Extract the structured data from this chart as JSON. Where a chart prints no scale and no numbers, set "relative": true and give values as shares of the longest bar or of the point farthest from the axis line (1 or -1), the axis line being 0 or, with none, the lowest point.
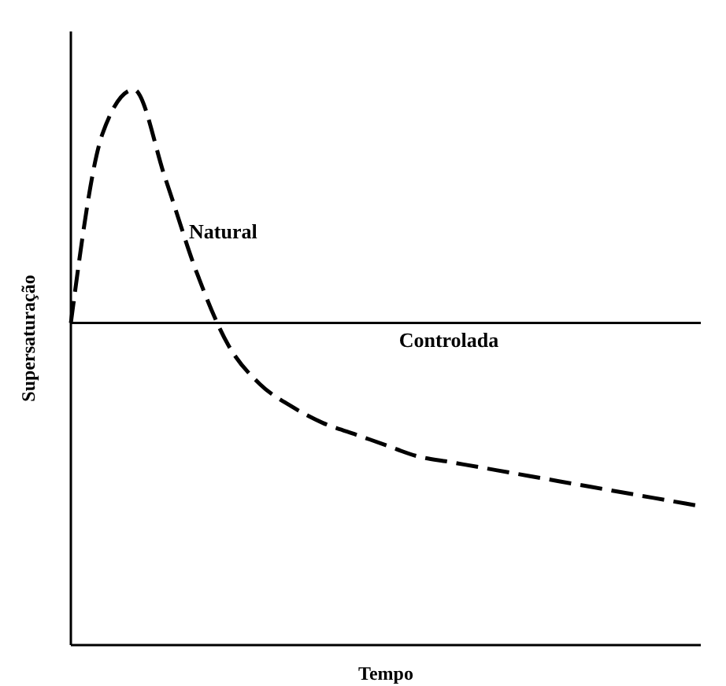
{
  "chart_data": {
    "type": "line",
    "relative": true,
    "xlabel": "Tempo",
    "ylabel": "Supersaturação",
    "marker": "none",
    "categories": [
      null,
      null,
      null,
      null,
      null,
      null,
      null,
      null,
      null,
      null,
      null,
      null,
      null,
      null,
      null,
      null,
      null,
      null,
      null,
      null,
      null
    ],
    "series": [
      {
        "name": "Natural",
        "color": "#000000",
        "line_style": "dashed",
        "values": [
          0.58,
          0.92,
          1.0,
          0.84,
          0.67,
          0.54,
          0.47,
          0.43,
          0.4,
          0.38,
          0.36,
          0.34,
          0.33,
          0.32,
          0.31,
          0.3,
          0.29,
          0.28,
          0.27,
          0.26,
          0.25
        ]
      },
      {
        "name": "Controlada",
        "color": "#000000",
        "line_style": "solid",
        "values": [
          0.58,
          0.58,
          0.58,
          0.58,
          0.58,
          0.58,
          0.58,
          0.58,
          0.58,
          0.58,
          0.58,
          0.58,
          0.58,
          0.58,
          0.58,
          0.58,
          0.58,
          0.58,
          0.58,
          0.58,
          0.58
        ]
      }
    ]
  }
}
